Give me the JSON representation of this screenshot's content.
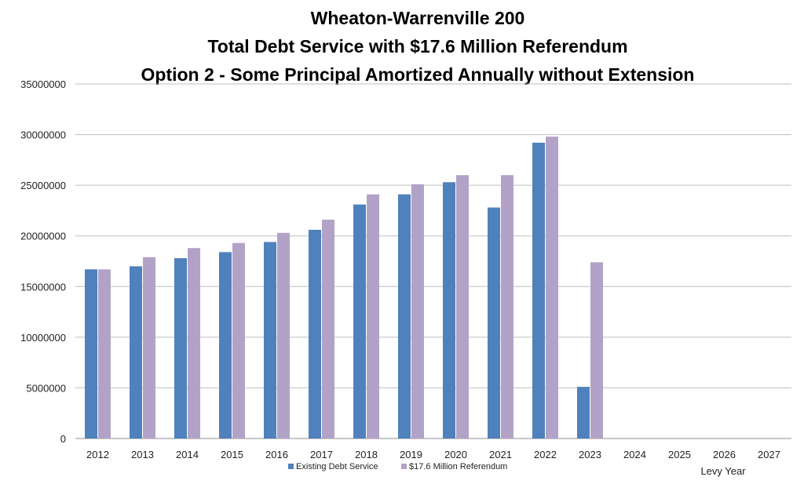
{
  "chart_data": {
    "type": "bar",
    "title": [
      "Wheaton-Warrenville 200",
      "Total Debt Service with $17.6 Million Referendum",
      "Option 2 - Some Principal Amortized Annually without Extension"
    ],
    "xlabel": "Levy Year",
    "ylabel": "",
    "ylim": [
      0,
      35000000
    ],
    "yticks": [
      "0",
      "5000000",
      "10000000",
      "15000000",
      "20000000",
      "25000000",
      "30000000",
      "35000000"
    ],
    "categories": [
      "2012",
      "2013",
      "2014",
      "2015",
      "2016",
      "2017",
      "2018",
      "2019",
      "2020",
      "2021",
      "2022",
      "2023",
      "2024",
      "2025",
      "2026",
      "2027"
    ],
    "series": [
      {
        "name": "Existing Debt Service",
        "color": "#4f81bd",
        "values": [
          16700000,
          17000000,
          17800000,
          18400000,
          19400000,
          20600000,
          23100000,
          24100000,
          25300000,
          22800000,
          29200000,
          5100000,
          0,
          0,
          0,
          0
        ]
      },
      {
        "name": "$17.6 Million Referendum",
        "color": "#b3a2c7",
        "values": [
          16700000,
          17900000,
          18800000,
          19300000,
          20300000,
          21600000,
          24100000,
          25100000,
          26000000,
          26000000,
          29800000,
          17400000,
          0,
          0,
          0,
          0
        ]
      }
    ],
    "grid": true,
    "legend": "bottom"
  }
}
